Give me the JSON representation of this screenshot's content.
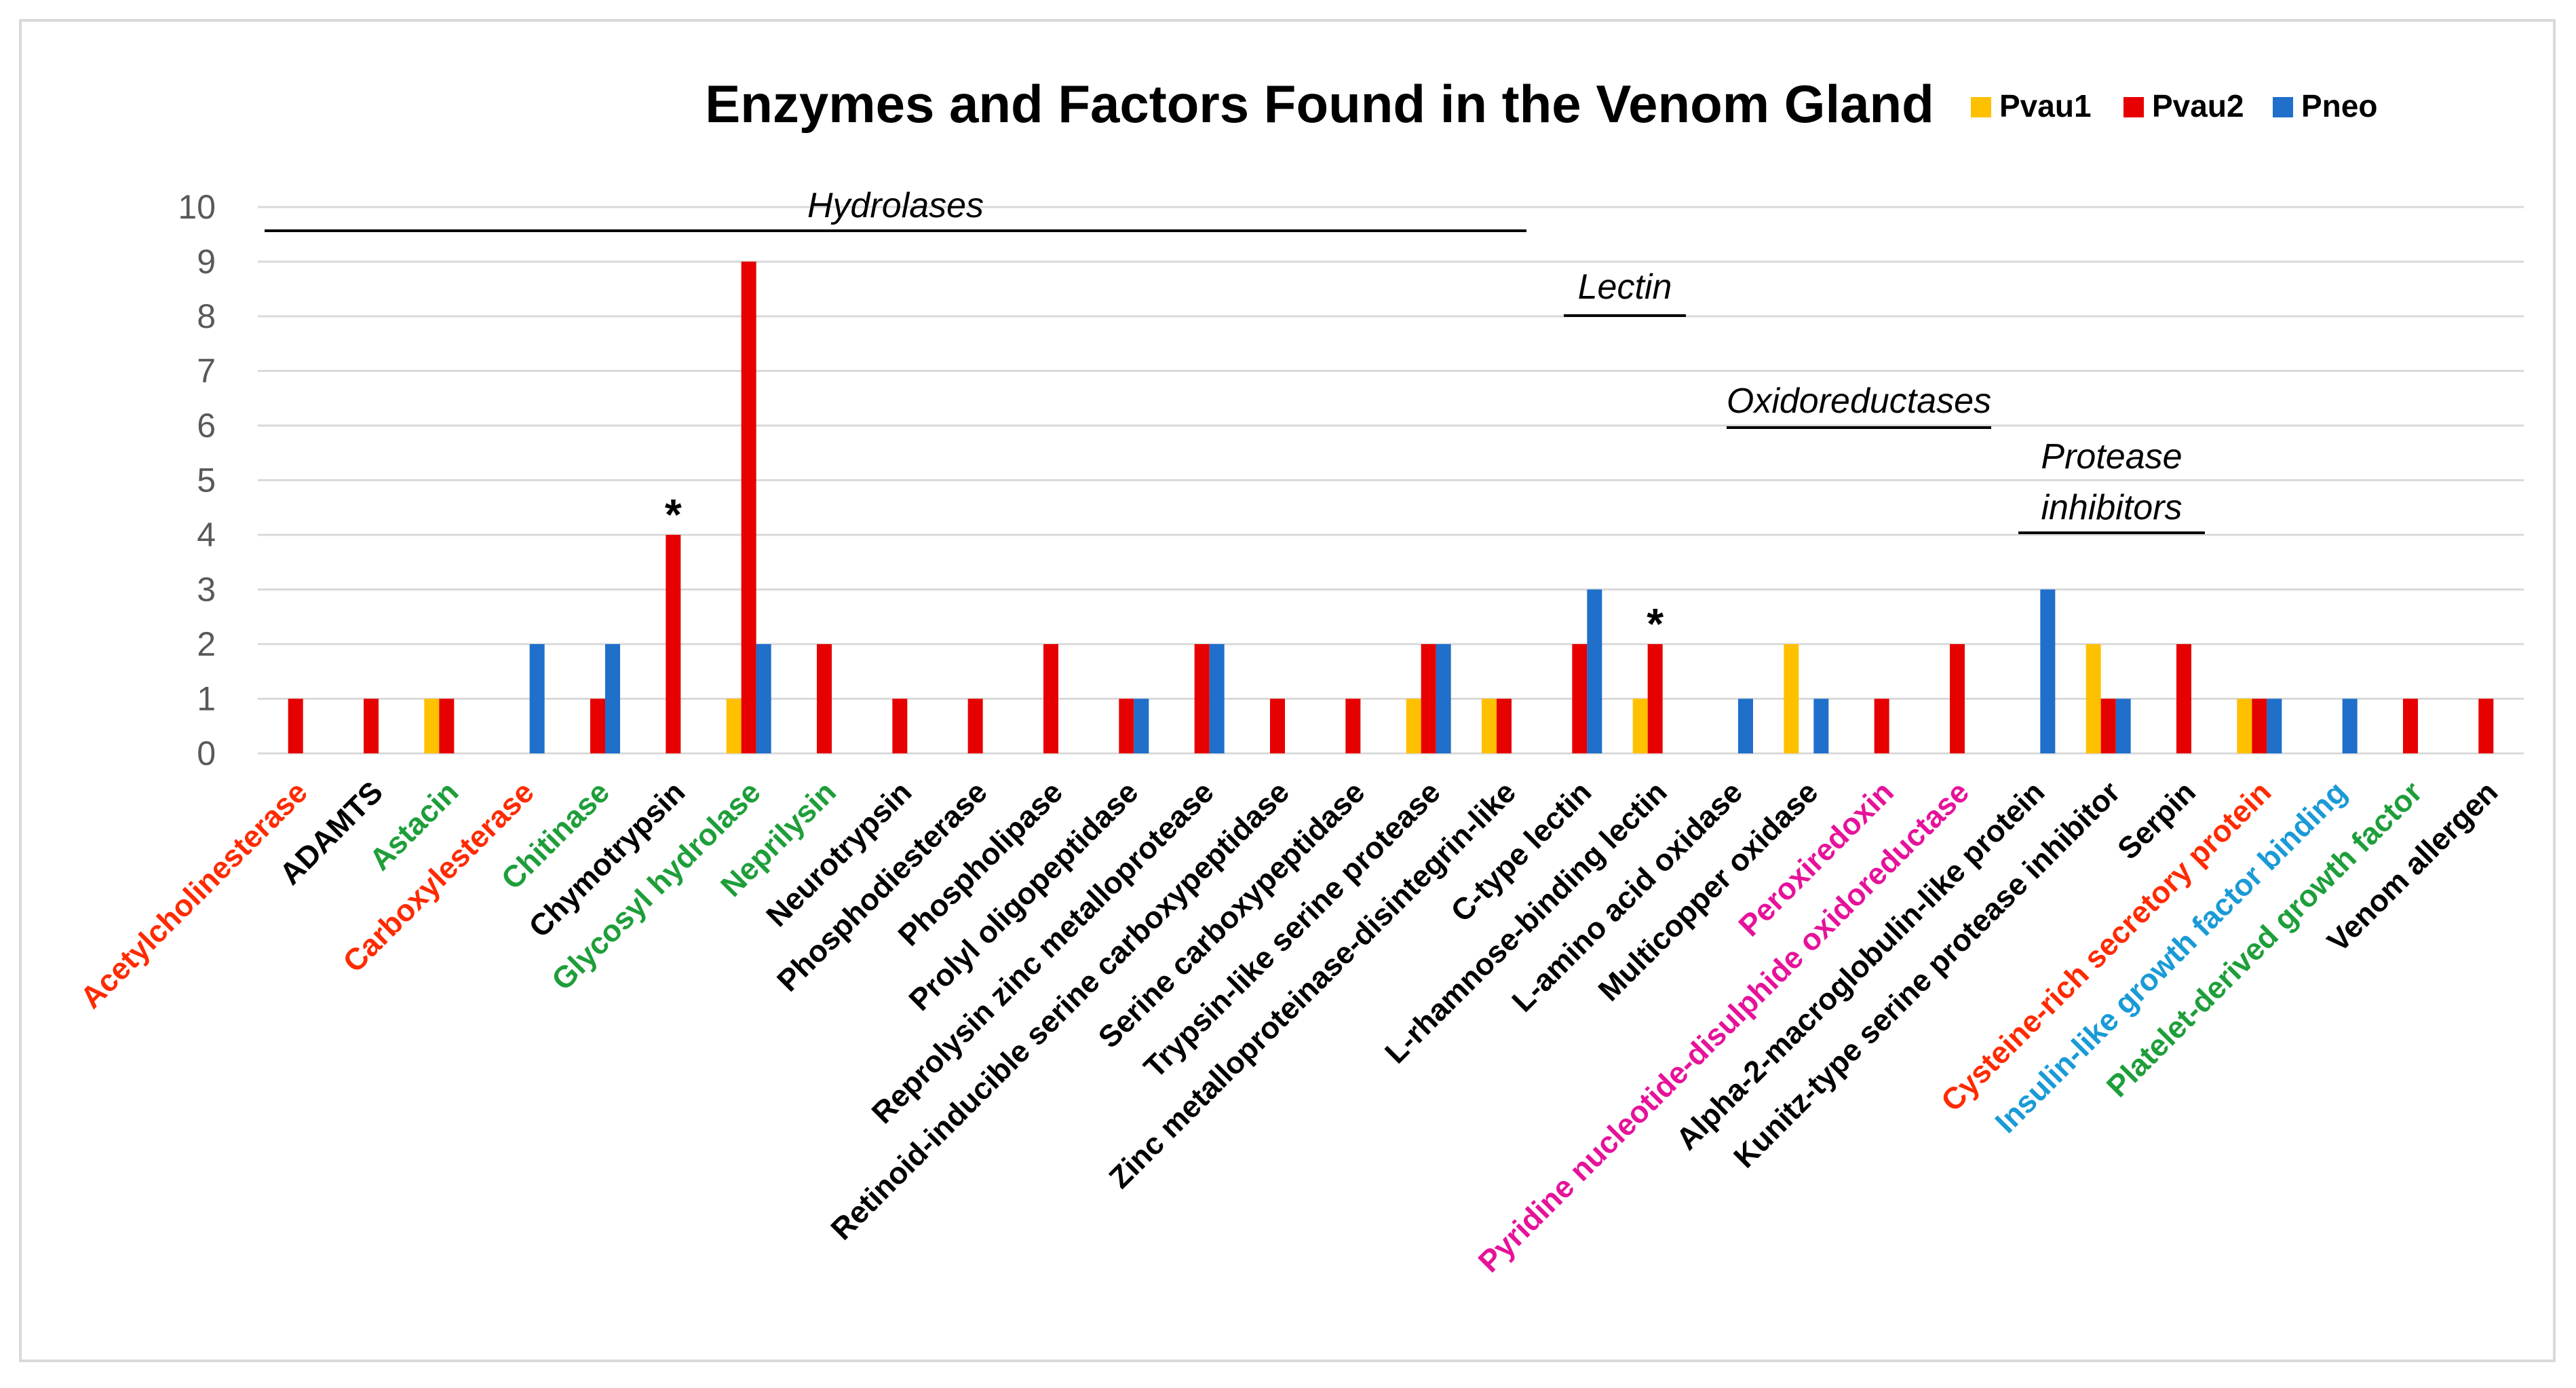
{
  "chart_data": {
    "type": "bar",
    "title": "Enzymes and Factors Found in the Venom Gland",
    "xlabel": "",
    "ylabel": "",
    "ylim": [
      0,
      10
    ],
    "yticks": [
      "0",
      "1",
      "2",
      "3",
      "4",
      "5",
      "6",
      "7",
      "8",
      "9",
      "10"
    ],
    "grid": true,
    "legend_position": "top-right",
    "series": [
      {
        "name": "Pvau1",
        "color": "#FFC000",
        "values": [
          0,
          0,
          1,
          0,
          0,
          0,
          1,
          0,
          0,
          0,
          0,
          0,
          0,
          0,
          0,
          1,
          1,
          0,
          1,
          0,
          2,
          0,
          0,
          0,
          2,
          0,
          1,
          0,
          0,
          0
        ]
      },
      {
        "name": "Pvau2",
        "color": "#E60000",
        "values": [
          1,
          1,
          1,
          0,
          1,
          4,
          9,
          2,
          1,
          1,
          2,
          1,
          2,
          1,
          1,
          2,
          1,
          2,
          2,
          0,
          0,
          1,
          2,
          0,
          1,
          2,
          1,
          0,
          1,
          1
        ]
      },
      {
        "name": "Pneo",
        "color": "#1F6FCB",
        "values": [
          0,
          0,
          0,
          2,
          2,
          0,
          2,
          0,
          0,
          0,
          0,
          1,
          2,
          0,
          0,
          2,
          0,
          3,
          0,
          1,
          1,
          0,
          0,
          3,
          1,
          0,
          1,
          1,
          0,
          0
        ]
      }
    ],
    "categories": [
      {
        "label": "Acetylcholinesterase",
        "color": "#FF2A00"
      },
      {
        "label": "ADAMTS",
        "color": "#000000"
      },
      {
        "label": "Astacin",
        "color": "#1E9E3A"
      },
      {
        "label": "Carboxylesterase",
        "color": "#FF2A00"
      },
      {
        "label": "Chitinase",
        "color": "#1E9E3A"
      },
      {
        "label": "Chymotrypsin",
        "color": "#000000"
      },
      {
        "label": "Glycosyl hydrolase",
        "color": "#1E9E3A"
      },
      {
        "label": "Neprilysin",
        "color": "#1E9E3A"
      },
      {
        "label": "Neurotrypsin",
        "color": "#000000"
      },
      {
        "label": "Phosphodiesterase",
        "color": "#000000"
      },
      {
        "label": "Phospholipase",
        "color": "#000000"
      },
      {
        "label": "Prolyl oligopeptidase",
        "color": "#000000"
      },
      {
        "label": "Reprolysin zinc metalloprotease",
        "color": "#000000"
      },
      {
        "label": "Retinoid-inducible serine carboxypeptidase",
        "color": "#000000"
      },
      {
        "label": "Serine carboxypeptidase",
        "color": "#000000"
      },
      {
        "label": "Trypsin-like serine protease",
        "color": "#000000"
      },
      {
        "label": "Zinc metalloproteinase-disintegrin-like",
        "color": "#000000"
      },
      {
        "label": "C-type lectin",
        "color": "#000000"
      },
      {
        "label": "L-rhamnose-binding  lectin",
        "color": "#000000"
      },
      {
        "label": "L-amino acid oxidase",
        "color": "#000000"
      },
      {
        "label": "Multicopper  oxidase",
        "color": "#000000"
      },
      {
        "label": "Peroxiredoxin",
        "color": "#E6129A"
      },
      {
        "label": "Pyridine nucleotide-disulphide  oxidoreductase",
        "color": "#E6129A"
      },
      {
        "label": "Alpha-2-macroglobulin-like protein",
        "color": "#000000"
      },
      {
        "label": "Kunitz-type serine protease inhibitor",
        "color": "#000000"
      },
      {
        "label": "Serpin",
        "color": "#000000"
      },
      {
        "label": "Cysteine-rich secretory protein",
        "color": "#FF2A00"
      },
      {
        "label": "Insulin-like growth factor binding",
        "color": "#1A9AD6"
      },
      {
        "label": "Platelet-derived growth factor",
        "color": "#1E9E3A"
      },
      {
        "label": "Venom  allergen",
        "color": "#000000"
      }
    ],
    "group_labels": [
      {
        "text": "Hydrolases",
        "from_category": 0,
        "to_category": 16
      },
      {
        "text": "Lectin",
        "from_category": 17,
        "to_category": 18
      },
      {
        "text": "Oxidoreductases",
        "from_category": 19,
        "to_category": 22
      },
      {
        "text": "Protease inhibitors",
        "from_category": 23,
        "to_category": 25
      }
    ],
    "annotations": [
      {
        "text": "*",
        "category": 5,
        "series": "Pvau2"
      },
      {
        "text": "*",
        "category": 18,
        "series": "Pvau2"
      }
    ]
  }
}
